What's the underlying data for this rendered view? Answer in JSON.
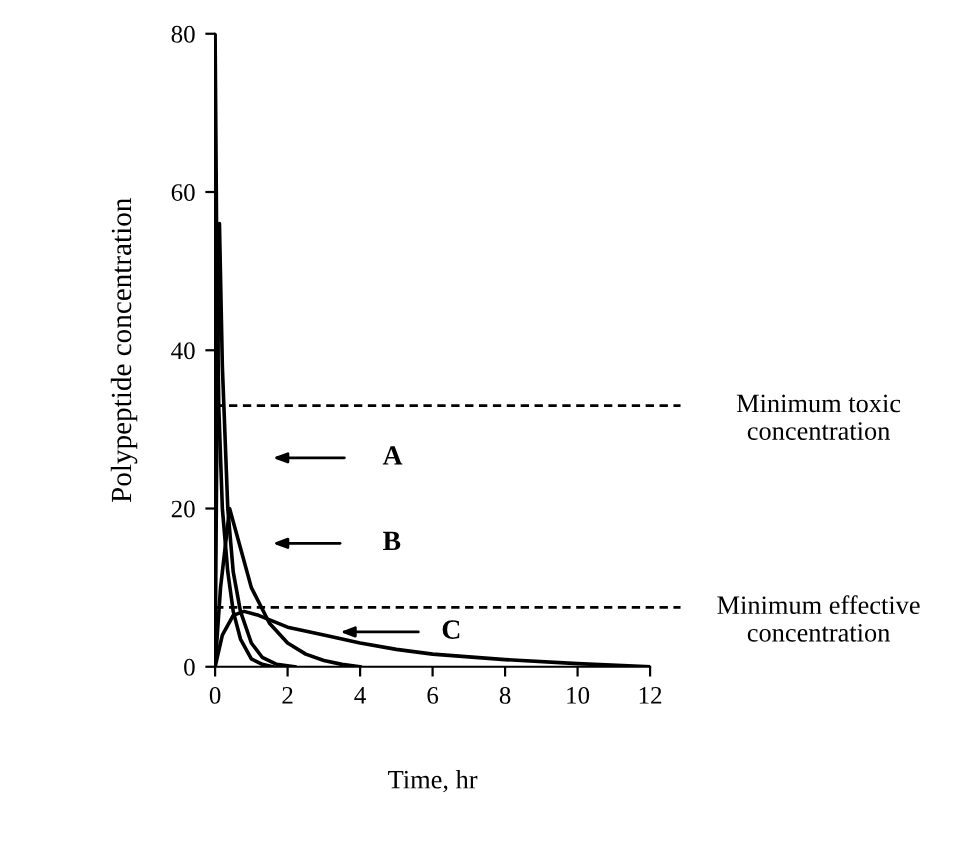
{
  "chart_data": {
    "type": "line",
    "xlabel": "Time, hr",
    "ylabel": "Polypeptide concentration",
    "xlim": [
      0,
      12
    ],
    "ylim": [
      0,
      80
    ],
    "xticks": [
      0,
      2,
      4,
      6,
      8,
      10,
      12
    ],
    "yticks": [
      0,
      20,
      40,
      60,
      80
    ],
    "grid": false,
    "legend": false,
    "marker": "none",
    "line_style": "solid",
    "series": [
      {
        "color": "#000000",
        "x": [
          0,
          0.05,
          0.1,
          0.2,
          0.35,
          0.5,
          0.7,
          1.0,
          1.3,
          1.6
        ],
        "values": [
          80,
          50,
          33,
          20,
          12,
          7,
          3.5,
          1,
          0.3,
          0
        ]
      },
      {
        "color": "#000000",
        "x": [
          0,
          0.05,
          0.12,
          0.2,
          0.35,
          0.5,
          0.7,
          1.0,
          1.3,
          1.7,
          2.2
        ],
        "values": [
          0,
          30,
          56,
          38,
          20,
          12,
          7,
          3,
          1.2,
          0.3,
          0
        ]
      },
      {
        "color": "#000000",
        "x": [
          0,
          0.15,
          0.4,
          0.7,
          1.0,
          1.5,
          2.0,
          2.5,
          3.0,
          3.5,
          4.0
        ],
        "values": [
          0,
          10,
          20,
          15,
          10,
          5.5,
          3,
          1.6,
          0.8,
          0.3,
          0
        ]
      },
      {
        "color": "#000000",
        "x": [
          0,
          0.2,
          0.5,
          0.8,
          1.2,
          2,
          3,
          4,
          5,
          6,
          8,
          10,
          12
        ],
        "values": [
          0,
          4,
          6.5,
          7,
          6.5,
          5,
          4,
          3,
          2.2,
          1.6,
          0.9,
          0.4,
          0
        ]
      }
    ],
    "ref_lines": [
      {
        "axis": "y",
        "value": 33,
        "label": "Minimum toxic\nconcentration",
        "line_style": "dashed",
        "color": "#000000"
      },
      {
        "axis": "y",
        "value": 7.5,
        "label": "Minimum effective\nconcentration",
        "line_style": "dashed",
        "color": "#000000"
      }
    ],
    "annotations": [
      "A",
      "B",
      "C"
    ]
  }
}
